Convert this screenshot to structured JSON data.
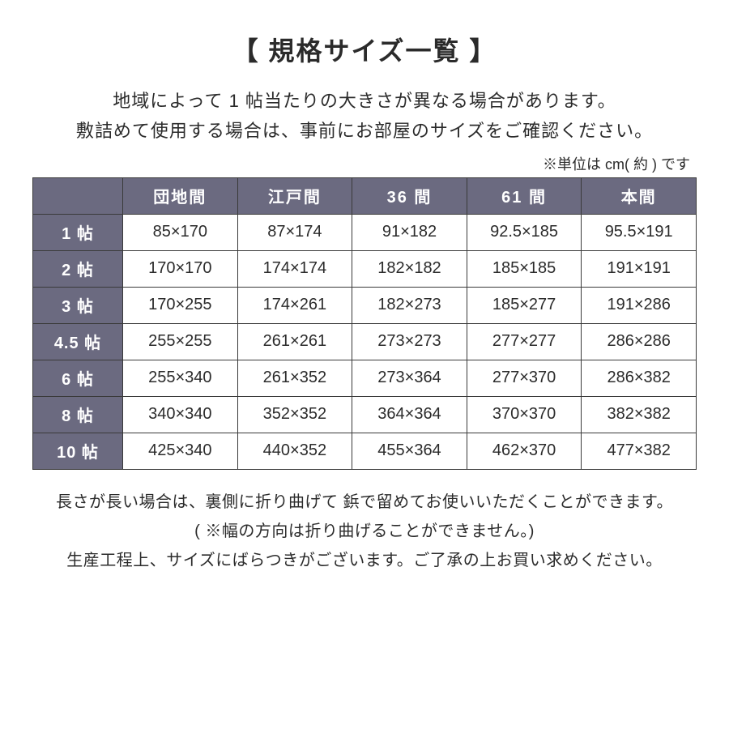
{
  "title": "【 規格サイズ一覧 】",
  "intro": {
    "line1": "地域によって 1 帖当たりの大きさが異なる場合があります。",
    "line2": "敷詰めて使用する場合は、事前にお部屋のサイズをご確認ください。"
  },
  "unit_note": "※単位は cm( 約 ) です",
  "table": {
    "header_bg": "#6b6a80",
    "header_fg": "#ffffff",
    "cell_bg": "#ffffff",
    "cell_fg": "#2b2b2b",
    "border_color": "#3a3a3a",
    "columns": [
      "団地間",
      "江戸間",
      "36 間",
      "61 間",
      "本間"
    ],
    "row_labels": [
      "1 帖",
      "2 帖",
      "3 帖",
      "4.5 帖",
      "6 帖",
      "8 帖",
      "10 帖"
    ],
    "rows": [
      [
        "85×170",
        "87×174",
        "91×182",
        "92.5×185",
        "95.5×191"
      ],
      [
        "170×170",
        "174×174",
        "182×182",
        "185×185",
        "191×191"
      ],
      [
        "170×255",
        "174×261",
        "182×273",
        "185×277",
        "191×286"
      ],
      [
        "255×255",
        "261×261",
        "273×273",
        "277×277",
        "286×286"
      ],
      [
        "255×340",
        "261×352",
        "273×364",
        "277×370",
        "286×382"
      ],
      [
        "340×340",
        "352×352",
        "364×364",
        "370×370",
        "382×382"
      ],
      [
        "425×340",
        "440×352",
        "455×364",
        "462×370",
        "477×382"
      ]
    ]
  },
  "footer": {
    "line1": "長さが長い場合は、裏側に折り曲げて 鋲で留めてお使いいただくことができます。",
    "line2": "( ※幅の方向は折り曲げることができません。)",
    "line3": "生産工程上、サイズにばらつきがございます。ご了承の上お買い求めください。"
  }
}
